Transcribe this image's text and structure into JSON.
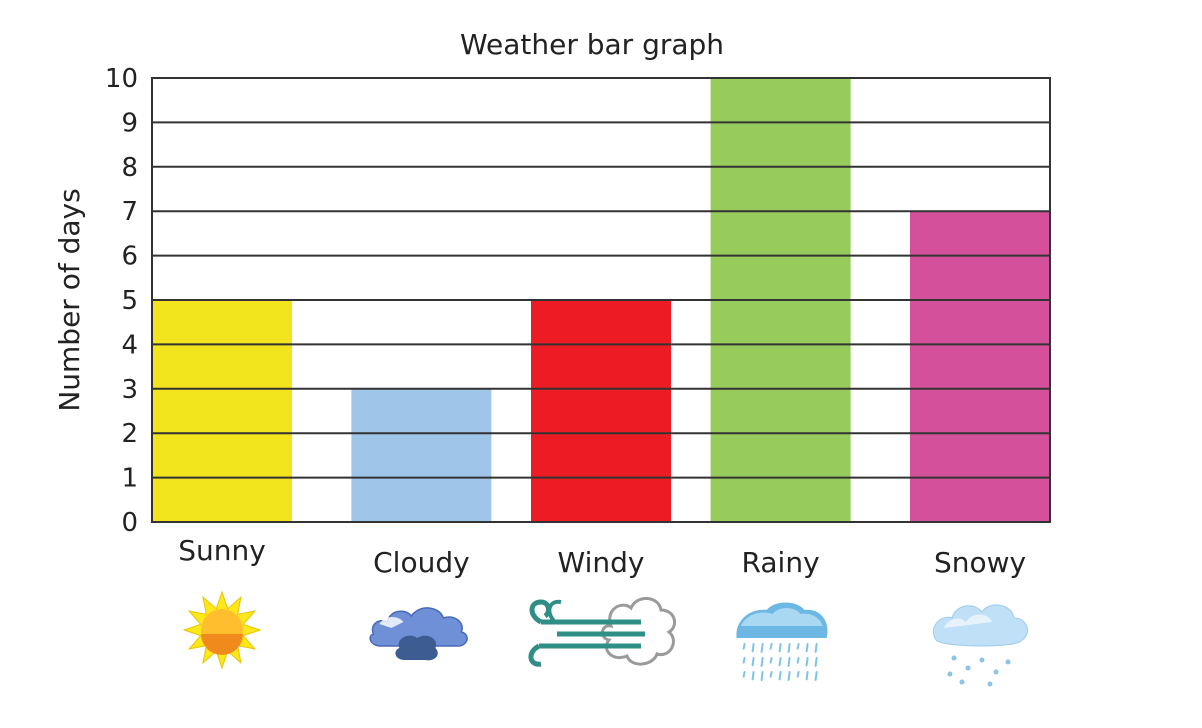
{
  "chart_data": {
    "type": "bar",
    "title": "Weather bar graph",
    "xlabel": "",
    "ylabel": "Number of days",
    "categories": [
      "Sunny",
      "Cloudy",
      "Windy",
      "Rainy",
      "Snowy"
    ],
    "values": [
      5,
      3,
      5,
      10,
      7
    ],
    "colors": [
      "#f2e41d",
      "#9fc5e8",
      "#ed1c24",
      "#97cb5b",
      "#d5509b"
    ],
    "icons": [
      "sun-icon",
      "cloud-icon",
      "wind-icon",
      "rain-cloud-icon",
      "snow-cloud-icon"
    ],
    "ylim": [
      0,
      10
    ],
    "yticks": [
      0,
      1,
      2,
      3,
      4,
      5,
      6,
      7,
      8,
      9,
      10
    ],
    "grid": true,
    "legend": "none"
  }
}
